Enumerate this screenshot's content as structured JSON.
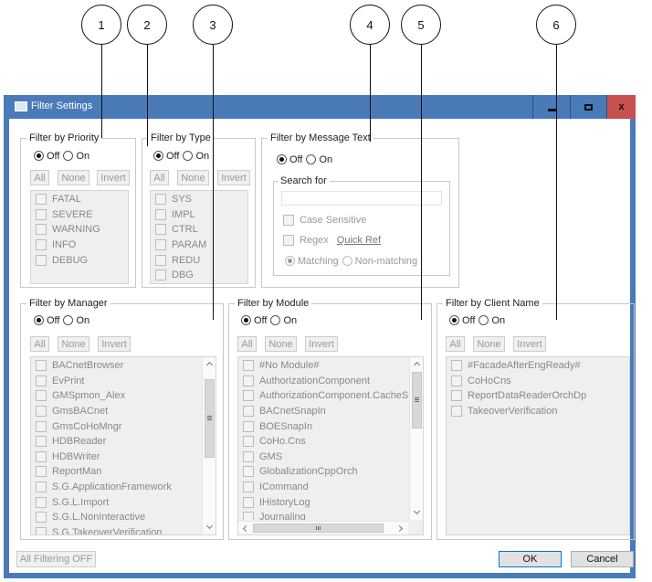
{
  "window": {
    "title": "Filter Settings",
    "minimize": "minimize",
    "maximize": "maximize",
    "close": "x"
  },
  "colors": {
    "titlebar": "#4a7ab8",
    "close": "#c75050"
  },
  "callouts": [
    "1",
    "2",
    "3",
    "4",
    "5",
    "6"
  ],
  "radio": {
    "off": "Off",
    "on": "On"
  },
  "buttons": {
    "all": "All",
    "none": "None",
    "invert": "Invert"
  },
  "priority": {
    "title": "Filter by Priority",
    "items": [
      "FATAL",
      "SEVERE",
      "WARNING",
      "INFO",
      "DEBUG"
    ]
  },
  "type": {
    "title": "Filter by Type",
    "items": [
      "SYS",
      "IMPL",
      "CTRL",
      "PARAM",
      "REDU",
      "DBG"
    ]
  },
  "message": {
    "title": "Filter by Message Text",
    "search_for": "Search for",
    "search_value": "",
    "case_sensitive": "Case Sensitive",
    "regex": "Regex",
    "quick_ref": "Quick Ref",
    "matching": "Matching",
    "non_matching": "Non-matching"
  },
  "manager": {
    "title": "Filter by Manager",
    "items": [
      "BACnetBrowser",
      "EvPrint",
      "GMSpmon_Alex",
      "GmsBACnet",
      "GmsCoHoMngr",
      "HDBReader",
      "HDBWriter",
      "ReportMan",
      "S.G.ApplicationFramework",
      "S.G.L.Import",
      "S.G.L.NonInteractive",
      "S.G.TakeoverVerification"
    ]
  },
  "module": {
    "title": "Filter by Module",
    "items": [
      "#No Module#",
      "AuthorizationComponent",
      "AuthorizationComponent.CacheStat",
      "BACnetSnapIn",
      "BOESnapIn",
      "CoHo.Cns",
      "GMS",
      "GlobalizationCppOrch",
      "ICommand",
      "IHistoryLog",
      "Journaling"
    ]
  },
  "client": {
    "title": "Filter by Client Name",
    "items": [
      "#FacadeAfterEngReady#",
      "CoHoCns",
      "ReportDataReaderOrchDp",
      "TakeoverVerification"
    ]
  },
  "footer": {
    "all_off": "All Filtering OFF",
    "ok": "OK",
    "cancel": "Cancel"
  }
}
